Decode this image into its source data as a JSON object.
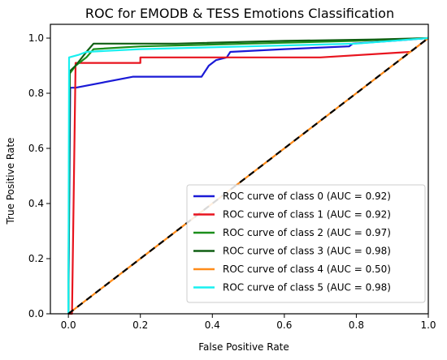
{
  "chart_data": {
    "type": "line",
    "title": "ROC for EMODB & TESS Emotions Classification",
    "xlabel": "False Positive Rate",
    "ylabel": "True Positive Rate",
    "xlim": [
      -0.05,
      1.0
    ],
    "ylim": [
      0.0,
      1.05
    ],
    "x_ticks": [
      "0.0",
      "0.2",
      "0.4",
      "0.6",
      "0.8",
      "1.0"
    ],
    "y_ticks": [
      "0.0",
      "0.2",
      "0.4",
      "0.6",
      "0.8",
      "1.0"
    ],
    "grid": false,
    "legend_position": "lower right",
    "series": [
      {
        "name": "ROC curve of class 0 (AUC = 0.92)",
        "color": "#1a1ad6",
        "points": [
          [
            0,
            0
          ],
          [
            0.005,
            0.82
          ],
          [
            0.02,
            0.82
          ],
          [
            0.18,
            0.86
          ],
          [
            0.37,
            0.86
          ],
          [
            0.39,
            0.9
          ],
          [
            0.41,
            0.92
          ],
          [
            0.44,
            0.93
          ],
          [
            0.45,
            0.95
          ],
          [
            0.6,
            0.96
          ],
          [
            0.78,
            0.97
          ],
          [
            0.79,
            0.98
          ],
          [
            0.9,
            0.99
          ],
          [
            1,
            1
          ]
        ]
      },
      {
        "name": "ROC curve of class 1 (AUC = 0.92)",
        "color": "#e8141e",
        "points": [
          [
            0,
            0
          ],
          [
            0.01,
            0
          ],
          [
            0.02,
            0.91
          ],
          [
            0.2,
            0.91
          ],
          [
            0.2,
            0.93
          ],
          [
            0.5,
            0.93
          ],
          [
            0.7,
            0.93
          ],
          [
            0.95,
            0.95
          ],
          [
            1,
            1
          ]
        ]
      },
      {
        "name": "ROC curve of class 2 (AUC = 0.97)",
        "color": "#1b8e1b",
        "points": [
          [
            0,
            0
          ],
          [
            0.003,
            0.87
          ],
          [
            0.02,
            0.9
          ],
          [
            0.05,
            0.93
          ],
          [
            0.07,
            0.96
          ],
          [
            0.2,
            0.97
          ],
          [
            0.5,
            0.98
          ],
          [
            0.8,
            0.99
          ],
          [
            1,
            1
          ]
        ]
      },
      {
        "name": "ROC curve of class 3 (AUC = 0.98)",
        "color": "#0f5f12",
        "points": [
          [
            0,
            0
          ],
          [
            0.004,
            0.88
          ],
          [
            0.02,
            0.9
          ],
          [
            0.05,
            0.95
          ],
          [
            0.07,
            0.98
          ],
          [
            0.3,
            0.98
          ],
          [
            0.6,
            0.99
          ],
          [
            0.85,
            0.995
          ],
          [
            1,
            1
          ]
        ]
      },
      {
        "name": "ROC curve of class 4 (AUC = 0.50)",
        "color": "#ff8c1a",
        "dashed": false,
        "points": [
          [
            0,
            0
          ],
          [
            1,
            1
          ]
        ]
      },
      {
        "name": "ROC curve of class 5 (AUC = 0.98)",
        "color": "#19f0f0",
        "points": [
          [
            0,
            0
          ],
          [
            0.002,
            0.93
          ],
          [
            0.03,
            0.94
          ],
          [
            0.05,
            0.95
          ],
          [
            0.2,
            0.96
          ],
          [
            0.5,
            0.97
          ],
          [
            0.8,
            0.98
          ],
          [
            1,
            1
          ]
        ]
      }
    ],
    "reference_line": {
      "color": "#000000",
      "style": "dashed",
      "points": [
        [
          0,
          0
        ],
        [
          1,
          1
        ]
      ]
    }
  }
}
